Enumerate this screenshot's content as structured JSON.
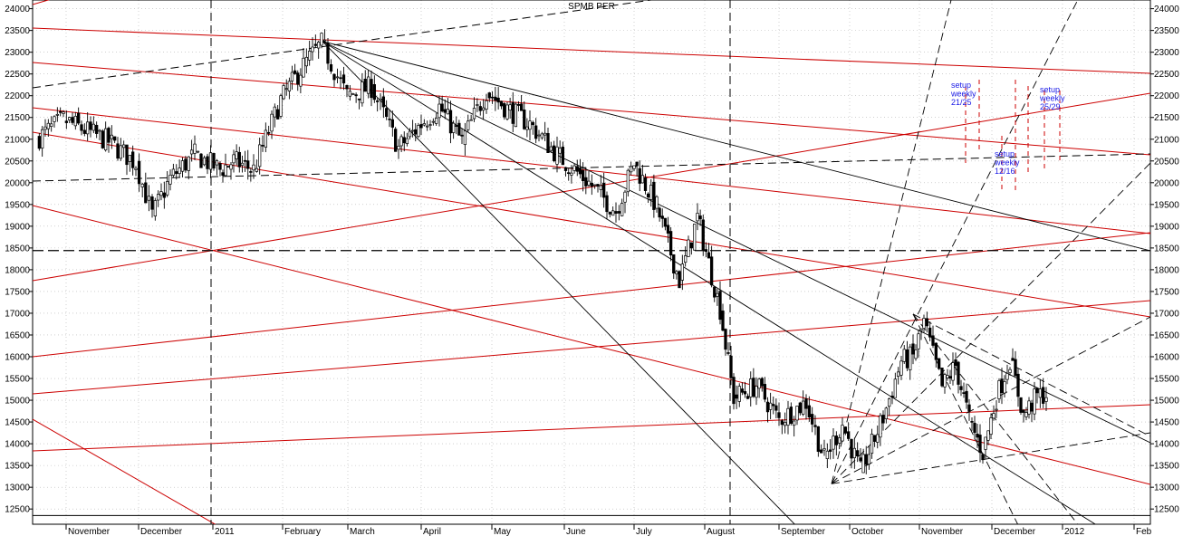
{
  "chart_data": {
    "type": "candlestick",
    "title": "SPMB PER",
    "y_ticks": [
      12500,
      13000,
      13500,
      14000,
      14500,
      15000,
      15500,
      16000,
      16500,
      17000,
      17500,
      18000,
      18500,
      19000,
      19500,
      20000,
      20500,
      21000,
      21500,
      22000,
      22500,
      23000,
      23500,
      24000
    ],
    "y_range": [
      12150,
      24200
    ],
    "x_labels": [
      "November",
      "December",
      "2011",
      "February",
      "March",
      "April",
      "May",
      "June",
      "July",
      "August",
      "September",
      "October",
      "November",
      "December",
      "2012",
      "Feb"
    ],
    "grid": true,
    "right_axis": true,
    "horizontal_levels": [
      18440,
      12350
    ],
    "annotations": [
      {
        "text": [
          "setup",
          "weekly",
          "21/25"
        ]
      },
      {
        "text": [
          "setup",
          "weekly",
          "12/16"
        ]
      },
      {
        "text": [
          "setup",
          "weekly",
          "25/29"
        ]
      }
    ],
    "price_keypoints": [
      {
        "x": "Oct 25",
        "close": 21000
      },
      {
        "x": "Nov 5",
        "close": 21450
      },
      {
        "x": "Nov 20",
        "close": 20950
      },
      {
        "x": "Nov 30",
        "close": 20450
      },
      {
        "x": "Dec 7",
        "close": 19250
      },
      {
        "x": "Dec 15",
        "close": 20100
      },
      {
        "x": "Dec 25",
        "close": 20650
      },
      {
        "x": "Jan 5",
        "close": 20300
      },
      {
        "x": "Jan 12",
        "close": 20500
      },
      {
        "x": "Jan 20",
        "close": 20300
      },
      {
        "x": "Feb 1",
        "close": 21900
      },
      {
        "x": "Feb 12",
        "close": 22700
      },
      {
        "x": "Feb 25",
        "close": 23200
      },
      {
        "x": "Mar 5",
        "close": 22000
      },
      {
        "x": "Mar 15",
        "close": 22200
      },
      {
        "x": "Mar 25",
        "close": 20800
      },
      {
        "x": "Apr 5",
        "close": 21350
      },
      {
        "x": "Apr 15",
        "close": 21750
      },
      {
        "x": "Apr 25",
        "close": 20950
      },
      {
        "x": "May 5",
        "close": 22100
      },
      {
        "x": "May 15",
        "close": 21700
      },
      {
        "x": "May 25",
        "close": 21350
      },
      {
        "x": "Jun 5",
        "close": 20650
      },
      {
        "x": "Jun 20",
        "close": 20000
      },
      {
        "x": "Jun 28",
        "close": 19350
      },
      {
        "x": "Jul 5",
        "close": 20450
      },
      {
        "x": "Jul 12",
        "close": 19450
      },
      {
        "x": "Jul 20",
        "close": 17750
      },
      {
        "x": "Jul 27",
        "close": 19200
      },
      {
        "x": "Aug 3",
        "close": 17100
      },
      {
        "x": "Aug 10",
        "close": 15050
      },
      {
        "x": "Aug 18",
        "close": 15350
      },
      {
        "x": "Aug 28",
        "close": 14550
      },
      {
        "x": "Sep 8",
        "close": 14950
      },
      {
        "x": "Sep 15",
        "close": 13650
      },
      {
        "x": "Sep 22",
        "close": 14450
      },
      {
        "x": "Sep 30",
        "close": 13350
      },
      {
        "x": "Oct 8",
        "close": 14600
      },
      {
        "x": "Oct 15",
        "close": 15900
      },
      {
        "x": "Oct 25",
        "close": 16000
      },
      {
        "x": "Oct 31",
        "close": 16800
      },
      {
        "x": "Nov 5",
        "close": 15300
      },
      {
        "x": "Nov 12",
        "close": 15800
      },
      {
        "x": "Nov 18",
        "close": 14550
      },
      {
        "x": "Nov 25",
        "close": 13800
      },
      {
        "x": "Dec 2",
        "close": 15050
      },
      {
        "x": "Dec 7",
        "close": 15950
      },
      {
        "x": "Dec 12",
        "close": 14650
      },
      {
        "x": "Dec 18",
        "close": 15100
      },
      {
        "x": "Dec 22",
        "close": 15150
      }
    ]
  }
}
